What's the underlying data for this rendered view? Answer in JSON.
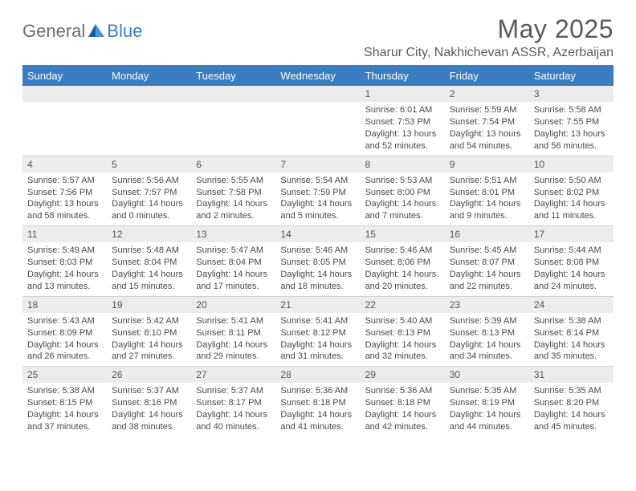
{
  "brand": {
    "word1": "General",
    "word2": "Blue",
    "word1_color": "#6d6e71",
    "word2_color": "#3a7ec1",
    "mark_dark": "#1f5f9e",
    "mark_light": "#4a90d9"
  },
  "title": {
    "month_year": "May 2025",
    "location": "Sharur City, Nakhichevan ASSR, Azerbaijan",
    "title_color": "#595a5c"
  },
  "colors": {
    "header_bg": "#3a7ec1",
    "header_text": "#ffffff",
    "daynum_bg": "#ececec",
    "body_text": "#4a4a4a",
    "row_border": "#d0d0d0"
  },
  "day_names": [
    "Sunday",
    "Monday",
    "Tuesday",
    "Wednesday",
    "Thursday",
    "Friday",
    "Saturday"
  ],
  "weeks": [
    [
      {
        "blank": true
      },
      {
        "blank": true
      },
      {
        "blank": true
      },
      {
        "blank": true
      },
      {
        "num": "1",
        "sunrise": "Sunrise: 6:01 AM",
        "sunset": "Sunset: 7:53 PM",
        "daylight": "Daylight: 13 hours and 52 minutes."
      },
      {
        "num": "2",
        "sunrise": "Sunrise: 5:59 AM",
        "sunset": "Sunset: 7:54 PM",
        "daylight": "Daylight: 13 hours and 54 minutes."
      },
      {
        "num": "3",
        "sunrise": "Sunrise: 5:58 AM",
        "sunset": "Sunset: 7:55 PM",
        "daylight": "Daylight: 13 hours and 56 minutes."
      }
    ],
    [
      {
        "num": "4",
        "sunrise": "Sunrise: 5:57 AM",
        "sunset": "Sunset: 7:56 PM",
        "daylight": "Daylight: 13 hours and 58 minutes."
      },
      {
        "num": "5",
        "sunrise": "Sunrise: 5:56 AM",
        "sunset": "Sunset: 7:57 PM",
        "daylight": "Daylight: 14 hours and 0 minutes."
      },
      {
        "num": "6",
        "sunrise": "Sunrise: 5:55 AM",
        "sunset": "Sunset: 7:58 PM",
        "daylight": "Daylight: 14 hours and 2 minutes."
      },
      {
        "num": "7",
        "sunrise": "Sunrise: 5:54 AM",
        "sunset": "Sunset: 7:59 PM",
        "daylight": "Daylight: 14 hours and 5 minutes."
      },
      {
        "num": "8",
        "sunrise": "Sunrise: 5:53 AM",
        "sunset": "Sunset: 8:00 PM",
        "daylight": "Daylight: 14 hours and 7 minutes."
      },
      {
        "num": "9",
        "sunrise": "Sunrise: 5:51 AM",
        "sunset": "Sunset: 8:01 PM",
        "daylight": "Daylight: 14 hours and 9 minutes."
      },
      {
        "num": "10",
        "sunrise": "Sunrise: 5:50 AM",
        "sunset": "Sunset: 8:02 PM",
        "daylight": "Daylight: 14 hours and 11 minutes."
      }
    ],
    [
      {
        "num": "11",
        "sunrise": "Sunrise: 5:49 AM",
        "sunset": "Sunset: 8:03 PM",
        "daylight": "Daylight: 14 hours and 13 minutes."
      },
      {
        "num": "12",
        "sunrise": "Sunrise: 5:48 AM",
        "sunset": "Sunset: 8:04 PM",
        "daylight": "Daylight: 14 hours and 15 minutes."
      },
      {
        "num": "13",
        "sunrise": "Sunrise: 5:47 AM",
        "sunset": "Sunset: 8:04 PM",
        "daylight": "Daylight: 14 hours and 17 minutes."
      },
      {
        "num": "14",
        "sunrise": "Sunrise: 5:46 AM",
        "sunset": "Sunset: 8:05 PM",
        "daylight": "Daylight: 14 hours and 18 minutes."
      },
      {
        "num": "15",
        "sunrise": "Sunrise: 5:46 AM",
        "sunset": "Sunset: 8:06 PM",
        "daylight": "Daylight: 14 hours and 20 minutes."
      },
      {
        "num": "16",
        "sunrise": "Sunrise: 5:45 AM",
        "sunset": "Sunset: 8:07 PM",
        "daylight": "Daylight: 14 hours and 22 minutes."
      },
      {
        "num": "17",
        "sunrise": "Sunrise: 5:44 AM",
        "sunset": "Sunset: 8:08 PM",
        "daylight": "Daylight: 14 hours and 24 minutes."
      }
    ],
    [
      {
        "num": "18",
        "sunrise": "Sunrise: 5:43 AM",
        "sunset": "Sunset: 8:09 PM",
        "daylight": "Daylight: 14 hours and 26 minutes."
      },
      {
        "num": "19",
        "sunrise": "Sunrise: 5:42 AM",
        "sunset": "Sunset: 8:10 PM",
        "daylight": "Daylight: 14 hours and 27 minutes."
      },
      {
        "num": "20",
        "sunrise": "Sunrise: 5:41 AM",
        "sunset": "Sunset: 8:11 PM",
        "daylight": "Daylight: 14 hours and 29 minutes."
      },
      {
        "num": "21",
        "sunrise": "Sunrise: 5:41 AM",
        "sunset": "Sunset: 8:12 PM",
        "daylight": "Daylight: 14 hours and 31 minutes."
      },
      {
        "num": "22",
        "sunrise": "Sunrise: 5:40 AM",
        "sunset": "Sunset: 8:13 PM",
        "daylight": "Daylight: 14 hours and 32 minutes."
      },
      {
        "num": "23",
        "sunrise": "Sunrise: 5:39 AM",
        "sunset": "Sunset: 8:13 PM",
        "daylight": "Daylight: 14 hours and 34 minutes."
      },
      {
        "num": "24",
        "sunrise": "Sunrise: 5:38 AM",
        "sunset": "Sunset: 8:14 PM",
        "daylight": "Daylight: 14 hours and 35 minutes."
      }
    ],
    [
      {
        "num": "25",
        "sunrise": "Sunrise: 5:38 AM",
        "sunset": "Sunset: 8:15 PM",
        "daylight": "Daylight: 14 hours and 37 minutes."
      },
      {
        "num": "26",
        "sunrise": "Sunrise: 5:37 AM",
        "sunset": "Sunset: 8:16 PM",
        "daylight": "Daylight: 14 hours and 38 minutes."
      },
      {
        "num": "27",
        "sunrise": "Sunrise: 5:37 AM",
        "sunset": "Sunset: 8:17 PM",
        "daylight": "Daylight: 14 hours and 40 minutes."
      },
      {
        "num": "28",
        "sunrise": "Sunrise: 5:36 AM",
        "sunset": "Sunset: 8:18 PM",
        "daylight": "Daylight: 14 hours and 41 minutes."
      },
      {
        "num": "29",
        "sunrise": "Sunrise: 5:36 AM",
        "sunset": "Sunset: 8:18 PM",
        "daylight": "Daylight: 14 hours and 42 minutes."
      },
      {
        "num": "30",
        "sunrise": "Sunrise: 5:35 AM",
        "sunset": "Sunset: 8:19 PM",
        "daylight": "Daylight: 14 hours and 44 minutes."
      },
      {
        "num": "31",
        "sunrise": "Sunrise: 5:35 AM",
        "sunset": "Sunset: 8:20 PM",
        "daylight": "Daylight: 14 hours and 45 minutes."
      }
    ]
  ]
}
